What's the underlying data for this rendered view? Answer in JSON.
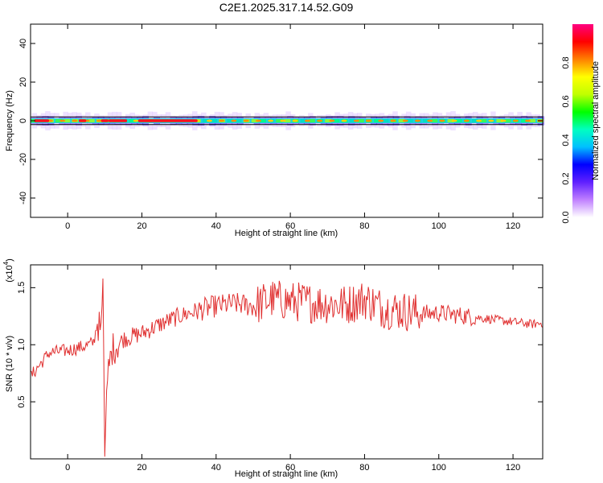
{
  "title": "C2E1.2025.317.14.52.G09",
  "chart_data": [
    {
      "type": "heatmap",
      "xlabel": "Height of straight line (km)",
      "ylabel": "Frequency (Hz)",
      "xlim": [
        -10,
        128
      ],
      "ylim": [
        -50,
        50
      ],
      "xticks": [
        0,
        20,
        40,
        60,
        80,
        100,
        120
      ],
      "yticks": [
        -40,
        -20,
        0,
        20,
        40
      ],
      "xtick_labels": [
        "0",
        "20",
        "40",
        "60",
        "80",
        "100",
        "120"
      ],
      "ytick_labels": [
        "-40",
        "-20",
        "0",
        "20",
        "40"
      ],
      "signal_band_hz": [
        -2,
        2
      ],
      "hot_segments_km": [
        [
          -9,
          -5
        ],
        [
          3,
          5
        ],
        [
          9,
          11
        ],
        [
          11,
          16
        ],
        [
          19,
          35
        ]
      ],
      "colorbar": {
        "label": "Normalized spectral amplitude",
        "range": [
          0.0,
          1.0
        ],
        "ticks": [
          0.0,
          0.2,
          0.4,
          0.6,
          0.8
        ],
        "tick_labels": [
          "0.0",
          "0.2",
          "0.4",
          "0.6",
          "0.8"
        ],
        "colors": [
          "#ffffff",
          "#c080ff",
          "#6020ff",
          "#0000ff",
          "#00c0ff",
          "#00ffc0",
          "#00ff00",
          "#c0ff00",
          "#ffff00",
          "#ff8000",
          "#ff0000",
          "#ff0080"
        ]
      },
      "grid": false
    },
    {
      "type": "line",
      "xlabel": "Height of straight line (km)",
      "ylabel": "SNR (10 * v/v)",
      "y_multiplier": "(x10",
      "y_multiplier_exp": "4",
      "y_multiplier_close": ")",
      "xlim": [
        -10,
        128
      ],
      "ylim": [
        0.0,
        1.7
      ],
      "xticks": [
        0,
        20,
        40,
        60,
        80,
        100,
        120
      ],
      "yticks": [
        0.5,
        1.0,
        1.5
      ],
      "xtick_labels": [
        "0",
        "20",
        "40",
        "60",
        "80",
        "100",
        "120"
      ],
      "ytick_labels": [
        "0.5",
        "1.0",
        "1.5"
      ],
      "color": "#e03030",
      "x": [
        -10,
        -5,
        0,
        5,
        7,
        8,
        9,
        9.5,
        10,
        10.5,
        11,
        12,
        15,
        20,
        25,
        30,
        35,
        40,
        45,
        50,
        55,
        60,
        65,
        70,
        75,
        80,
        85,
        90,
        95,
        100,
        105,
        110,
        115,
        120,
        125,
        128
      ],
      "y": [
        0.72,
        0.93,
        0.95,
        0.99,
        1.02,
        1.2,
        1.1,
        1.58,
        0.02,
        0.6,
        0.78,
        0.96,
        1.05,
        1.1,
        1.18,
        1.25,
        1.3,
        1.34,
        1.36,
        1.34,
        1.4,
        1.38,
        1.37,
        1.36,
        1.35,
        1.4,
        1.32,
        1.3,
        1.27,
        1.28,
        1.26,
        1.24,
        1.22,
        1.2,
        1.18,
        1.19
      ],
      "grid": false
    }
  ]
}
